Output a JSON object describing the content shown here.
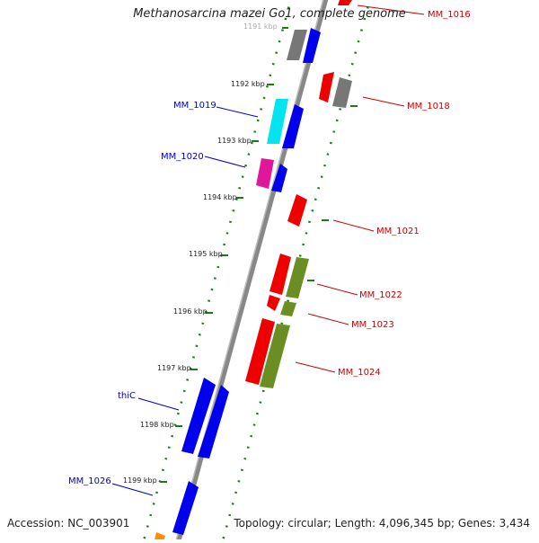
{
  "title": "Methanosarcina mazei Go1, complete genome",
  "footer": {
    "accession": "Accession: NC_003901",
    "topology": "Topology: circular; Length: 4,096,345 bp; Genes: 3,434"
  },
  "ticks": [
    "1191 kbp",
    "1192 kbp",
    "1193 kbp",
    "1194 kbp",
    "1195 kbp",
    "1196 kbp",
    "1197 kbp",
    "1198 kbp",
    "1199 kbp"
  ],
  "labels": {
    "MM_1016": "MM_1016",
    "MM_1018": "MM_1018",
    "MM_1019": "MM_1019",
    "MM_1020": "MM_1020",
    "MM_1021": "MM_1021",
    "MM_1022": "MM_1022",
    "MM_1023": "MM_1023",
    "MM_1024": "MM_1024",
    "thiC": "thiC",
    "MM_1026": "MM_1026"
  },
  "colors": {
    "forward_label": "#0000cc",
    "reverse_label": "#cc0000",
    "blue": "#0000ee",
    "red": "#ee0000",
    "gray": "#777777",
    "cyan": "#00e5ee",
    "magenta": "#e0179a",
    "olive": "#6b8e23",
    "orange": "#ff8c00",
    "tick": "#1a7a1a",
    "backbone": "#888888"
  }
}
